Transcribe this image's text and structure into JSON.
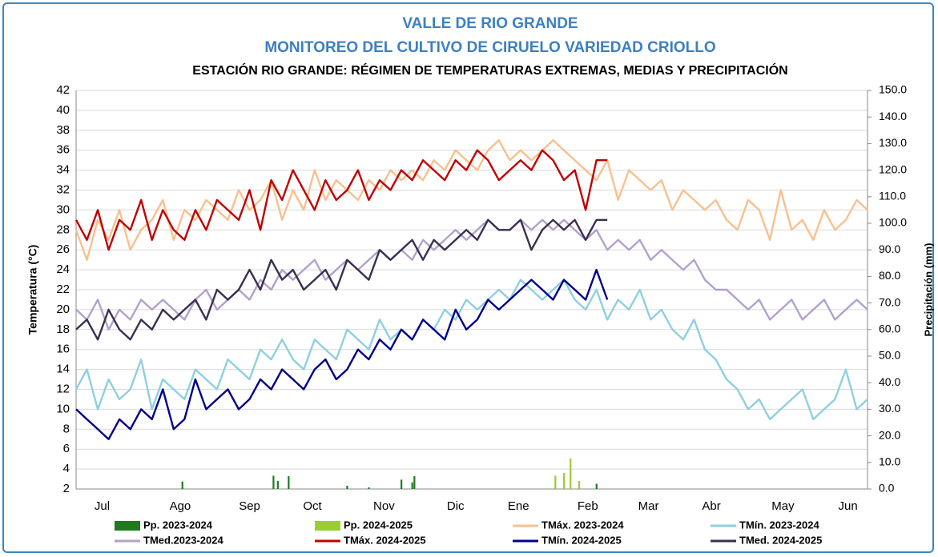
{
  "chart_data": {
    "type": "line",
    "title": "VALLE DE RIO GRANDE",
    "title2": "MONITOREO DEL CULTIVO DE CIRUELO VARIEDAD CRIOLLO",
    "subtitle": "ESTACIÓN RIO GRANDE: RÉGIMEN DE TEMPERATURAS EXTREMAS, MEDIAS Y PRECIPITACIÓN",
    "ylabel": "Temperatura (°C)",
    "y2label": "Precipitación (mm)",
    "grid": true,
    "xlim": [
      0,
      365
    ],
    "xticks": [
      {
        "value": 12,
        "label": "Jul"
      },
      {
        "value": 48,
        "label": "Ago"
      },
      {
        "value": 80,
        "label": "Sep"
      },
      {
        "value": 109,
        "label": "Oct"
      },
      {
        "value": 142,
        "label": "Nov"
      },
      {
        "value": 175,
        "label": "Dic"
      },
      {
        "value": 204,
        "label": "Ene"
      },
      {
        "value": 236,
        "label": "Feb"
      },
      {
        "value": 264,
        "label": "Mar"
      },
      {
        "value": 293,
        "label": "Abr"
      },
      {
        "value": 326,
        "label": "May"
      },
      {
        "value": 356,
        "label": "Jun"
      }
    ],
    "ylim": [
      2,
      42
    ],
    "yticks": [
      2,
      4,
      6,
      8,
      10,
      12,
      14,
      16,
      18,
      20,
      22,
      24,
      26,
      28,
      30,
      32,
      34,
      36,
      38,
      40,
      42
    ],
    "y2lim": [
      0,
      150
    ],
    "y2ticks": [
      {
        "value": 0,
        "label": "0.0"
      },
      {
        "value": 10,
        "label": "10.0"
      },
      {
        "value": 20,
        "label": "20.0"
      },
      {
        "value": 30,
        "label": "30.0"
      },
      {
        "value": 40,
        "label": "40.0"
      },
      {
        "value": 50,
        "label": "50.0"
      },
      {
        "value": 60,
        "label": "60.0"
      },
      {
        "value": 70,
        "label": "70.0"
      },
      {
        "value": 80,
        "label": "80.0"
      },
      {
        "value": 90,
        "label": "90.0"
      },
      {
        "value": 100,
        "label": "100.0"
      },
      {
        "value": 110,
        "label": "110.0"
      },
      {
        "value": 120,
        "label": "120.0"
      },
      {
        "value": 130,
        "label": "130.0"
      },
      {
        "value": 140,
        "label": "140.0"
      },
      {
        "value": 150,
        "label": "150.0"
      }
    ],
    "x": [
      0,
      5,
      10,
      15,
      20,
      25,
      30,
      35,
      40,
      45,
      50,
      55,
      60,
      65,
      70,
      75,
      80,
      85,
      90,
      95,
      100,
      105,
      110,
      115,
      120,
      125,
      130,
      135,
      140,
      145,
      150,
      155,
      160,
      165,
      170,
      175,
      180,
      185,
      190,
      195,
      200,
      205,
      210,
      215,
      220,
      225,
      230,
      235,
      240,
      245,
      250,
      255,
      260,
      265,
      270,
      275,
      280,
      285,
      290,
      295,
      300,
      305,
      310,
      315,
      320,
      325,
      330,
      335,
      340,
      345,
      350,
      355,
      360,
      365
    ],
    "series": [
      {
        "name": "Pp. 2023-2024",
        "type": "bar",
        "axis": "y2",
        "color": "#1e7b1e",
        "x": [
          49,
          91,
          93,
          98,
          125,
          135,
          150,
          155,
          156,
          240
        ],
        "values": [
          2.8,
          5.0,
          3.0,
          4.8,
          1.2,
          0.6,
          3.5,
          2.5,
          4.8,
          2.0
        ]
      },
      {
        "name": "Pp. 2024-2025",
        "type": "bar",
        "axis": "y2",
        "color": "#9acd32",
        "x": [
          221,
          225,
          228,
          232
        ],
        "values": [
          5.0,
          6.0,
          11.5,
          3.0
        ]
      },
      {
        "name": "TMáx. 2023-2024",
        "type": "line",
        "color": "#f8c08f",
        "values": [
          28,
          25,
          29,
          27,
          30,
          26,
          28,
          29,
          31,
          27,
          30,
          29,
          31,
          30,
          29,
          32,
          30,
          31,
          33,
          29,
          32,
          30,
          34,
          31,
          33,
          32,
          31,
          33,
          32,
          34,
          33,
          34,
          33,
          35,
          34,
          36,
          35,
          34,
          36,
          37,
          35,
          36,
          35,
          36,
          37,
          36,
          35,
          34,
          33,
          35,
          31,
          34,
          33,
          32,
          33,
          30,
          32,
          31,
          30,
          31,
          29,
          28,
          31,
          30,
          27,
          32,
          28,
          29,
          27,
          30,
          28,
          29,
          31,
          30
        ]
      },
      {
        "name": "TMín. 2023-2024",
        "type": "line",
        "color": "#8ecfe0",
        "values": [
          12,
          14,
          10,
          13,
          11,
          12,
          15,
          10,
          13,
          12,
          11,
          14,
          13,
          12,
          15,
          14,
          13,
          16,
          15,
          17,
          15,
          14,
          17,
          16,
          15,
          18,
          17,
          16,
          19,
          17,
          18,
          17,
          19,
          18,
          20,
          19,
          21,
          20,
          21,
          22,
          21,
          23,
          22,
          21,
          22,
          23,
          21,
          20,
          22,
          19,
          21,
          20,
          22,
          19,
          20,
          18,
          17,
          19,
          16,
          15,
          13,
          12,
          10,
          11,
          9,
          10,
          11,
          12,
          9,
          10,
          11,
          14,
          10,
          11
        ]
      },
      {
        "name": "TMed.2023-2024",
        "type": "line",
        "color": "#b3a0cc",
        "values": [
          20,
          19,
          21,
          18,
          20,
          19,
          21,
          20,
          21,
          20,
          19,
          21,
          22,
          20,
          21,
          22,
          21,
          23,
          22,
          24,
          23,
          24,
          25,
          23,
          24,
          25,
          24,
          25,
          26,
          25,
          26,
          25,
          27,
          26,
          27,
          28,
          27,
          28,
          29,
          28,
          28,
          29,
          28,
          29,
          28,
          29,
          28,
          27,
          28,
          26,
          27,
          26,
          27,
          25,
          26,
          25,
          24,
          25,
          23,
          22,
          22,
          21,
          20,
          21,
          19,
          20,
          21,
          19,
          20,
          21,
          19,
          20,
          21,
          20
        ]
      },
      {
        "name": "TMáx. 2024-2025",
        "type": "line",
        "color": "#c00000",
        "values": [
          29,
          27,
          30,
          26,
          29,
          28,
          31,
          27,
          30,
          28,
          27,
          30,
          28,
          31,
          30,
          29,
          32,
          28,
          33,
          31,
          34,
          32,
          30,
          33,
          31,
          32,
          34,
          31,
          33,
          32,
          34,
          33,
          35,
          34,
          33,
          35,
          34,
          36,
          35,
          33,
          34,
          35,
          34,
          36,
          35,
          33,
          34,
          30,
          35,
          35,
          null,
          null,
          null,
          null,
          null,
          null,
          null,
          null,
          null,
          null,
          null,
          null,
          null,
          null,
          null,
          null,
          null,
          null,
          null,
          null,
          null,
          null,
          null,
          null
        ]
      },
      {
        "name": "TMín. 2024-2025",
        "type": "line",
        "color": "#00008b",
        "values": [
          10,
          9,
          8,
          7,
          9,
          8,
          10,
          9,
          12,
          8,
          9,
          13,
          10,
          11,
          12,
          10,
          11,
          13,
          12,
          14,
          13,
          12,
          14,
          15,
          13,
          14,
          16,
          15,
          17,
          16,
          18,
          17,
          19,
          18,
          17,
          20,
          18,
          19,
          21,
          20,
          21,
          22,
          23,
          22,
          21,
          23,
          22,
          21,
          24,
          21,
          null,
          null,
          null,
          null,
          null,
          null,
          null,
          null,
          null,
          null,
          null,
          null,
          null,
          null,
          null,
          null,
          null,
          null,
          null,
          null,
          null,
          null,
          null,
          null
        ]
      },
      {
        "name": "TMed. 2024-2025",
        "type": "line",
        "color": "#3b2f4f",
        "values": [
          18,
          19,
          17,
          20,
          18,
          17,
          19,
          18,
          20,
          19,
          20,
          21,
          19,
          22,
          21,
          22,
          24,
          22,
          25,
          23,
          24,
          22,
          23,
          24,
          22,
          25,
          24,
          23,
          26,
          25,
          26,
          27,
          25,
          27,
          26,
          27,
          28,
          27,
          29,
          28,
          28,
          29,
          26,
          28,
          29,
          28,
          29,
          27,
          29,
          29,
          null,
          null,
          null,
          null,
          null,
          null,
          null,
          null,
          null,
          null,
          null,
          null,
          null,
          null,
          null,
          null,
          null,
          null,
          null,
          null,
          null,
          null,
          null,
          null
        ]
      }
    ]
  }
}
